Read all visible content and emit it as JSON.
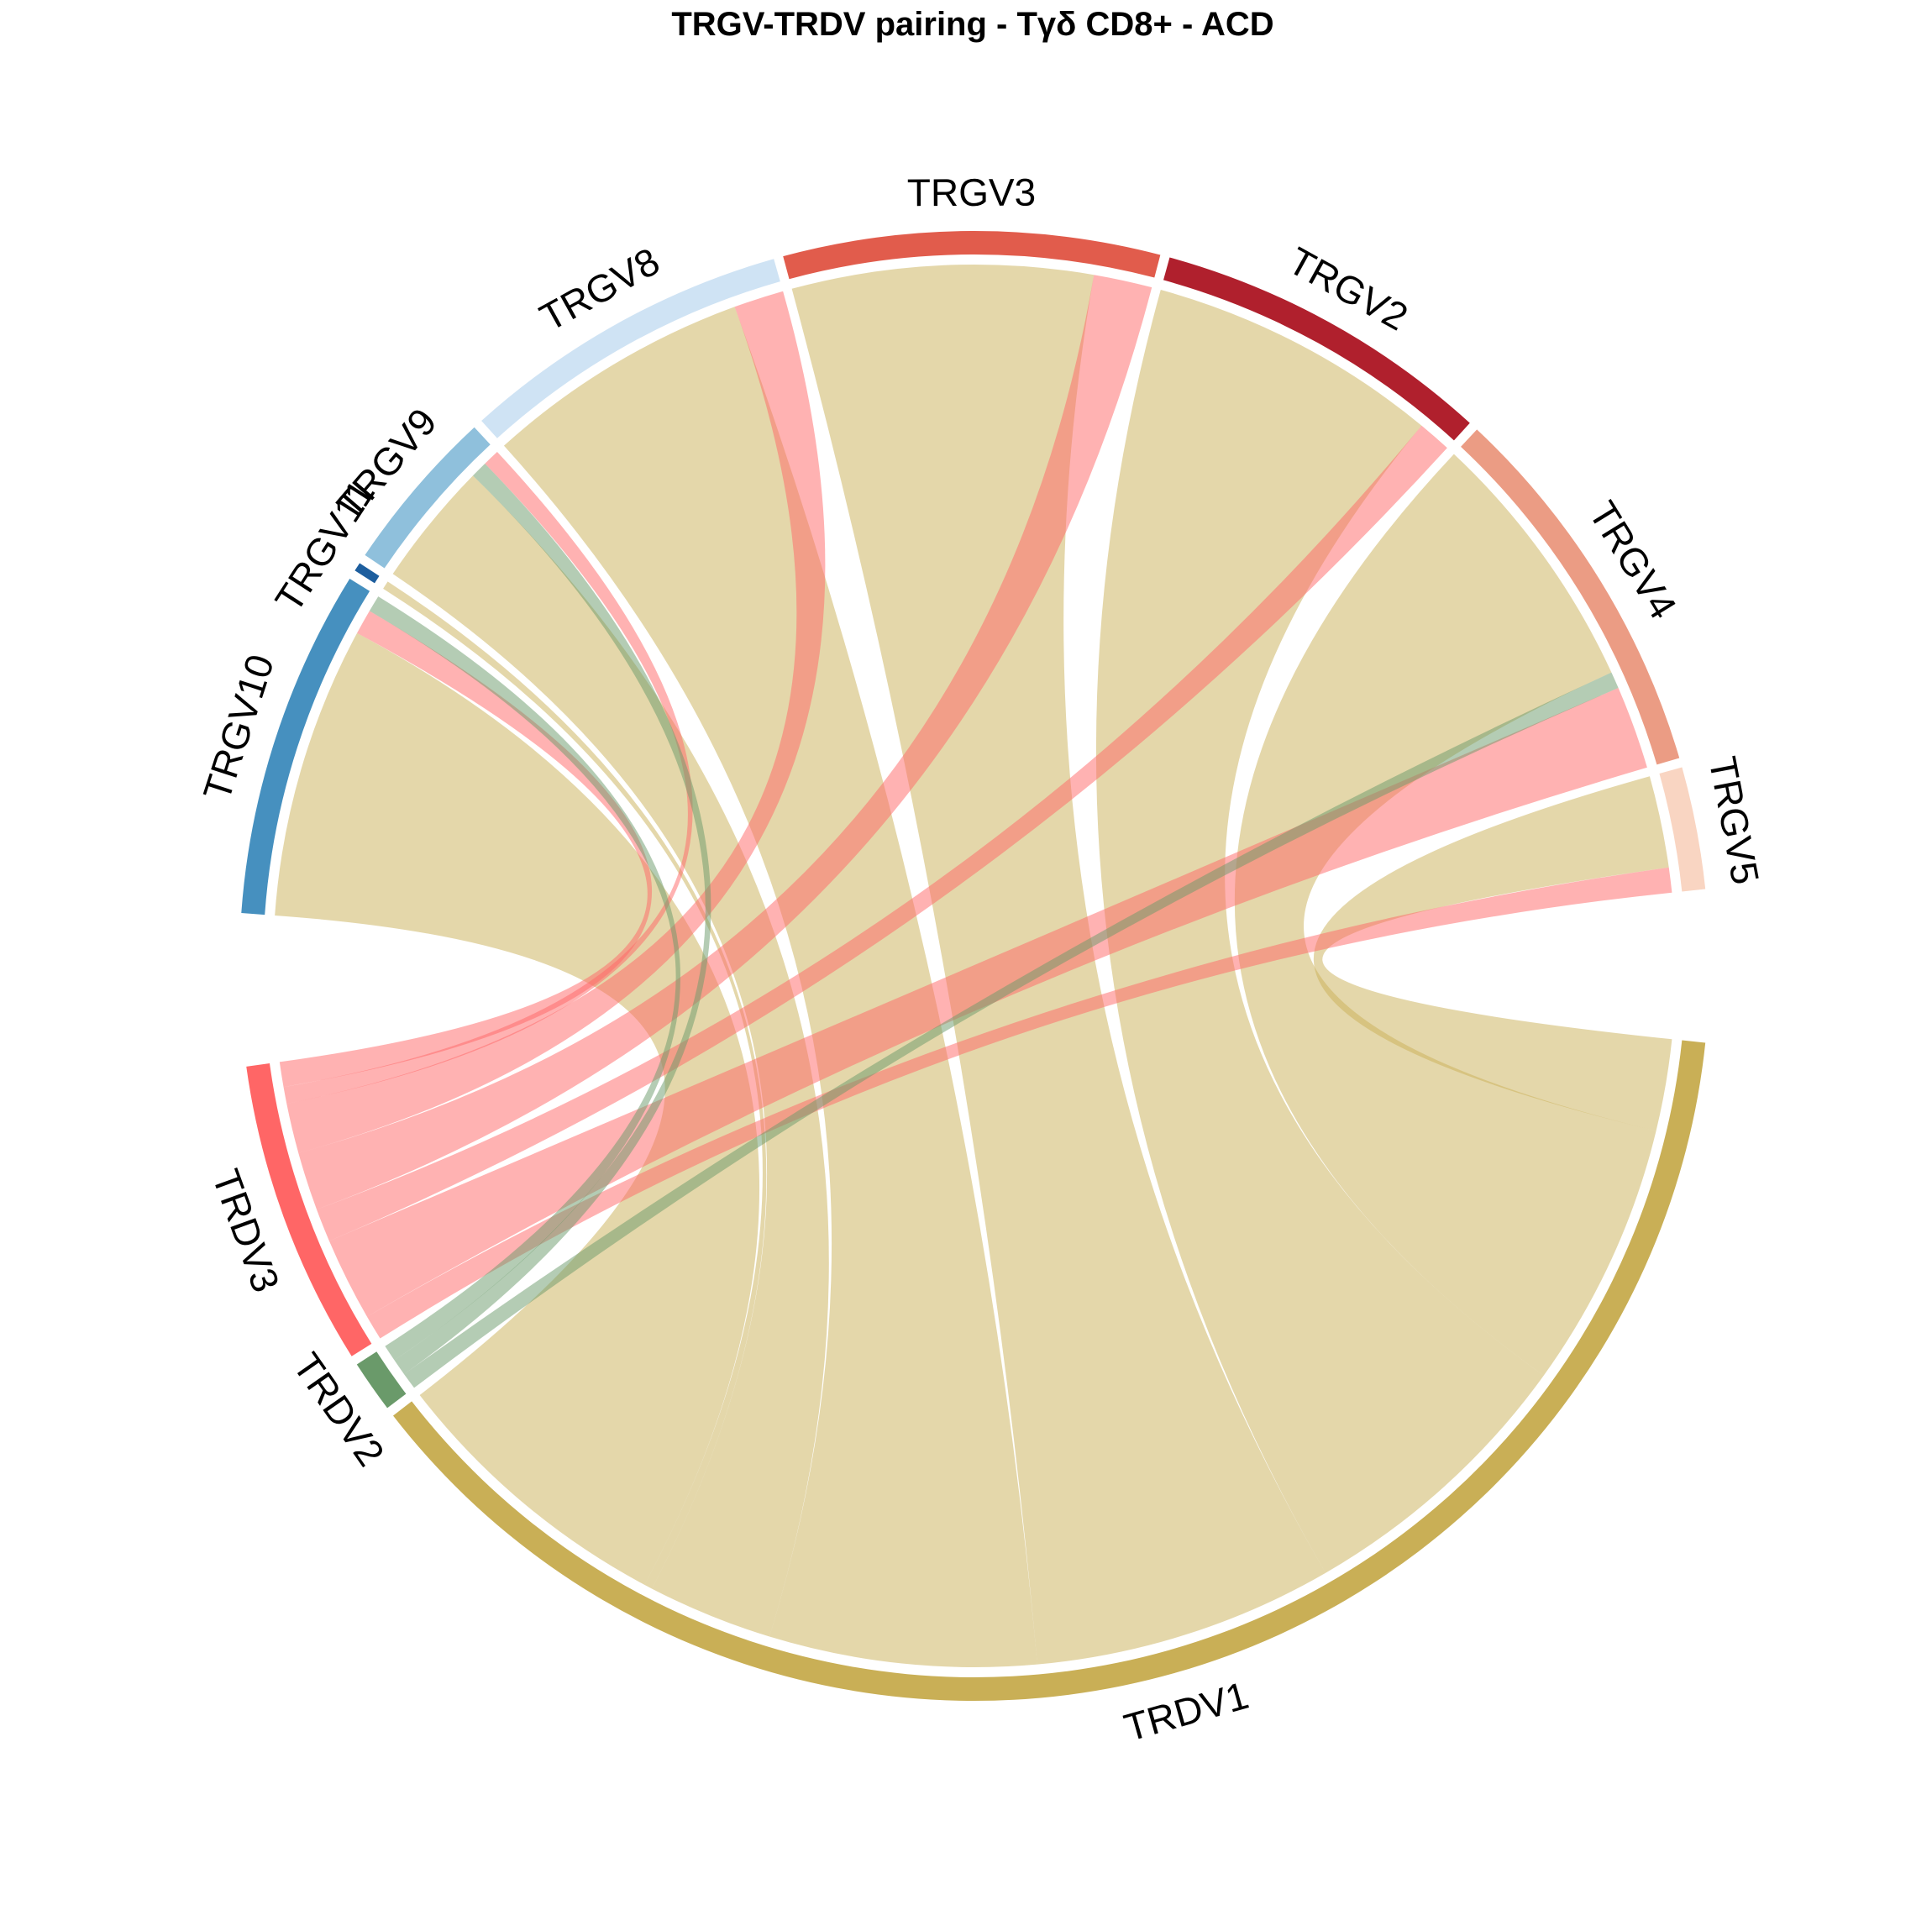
{
  "chart_data": {
    "type": "chord",
    "title": "TRGV-TRDV pairing - Tγδ CD8+ - ACD",
    "sectors": [
      {
        "name": "TRGV5",
        "color": "#F9D5C2",
        "group": "TRGV"
      },
      {
        "name": "TRGV4",
        "color": "#EB9C84",
        "group": "TRGV"
      },
      {
        "name": "TRGV2",
        "color": "#B0202D",
        "group": "TRGV"
      },
      {
        "name": "TRGV3",
        "color": "#E15C4C",
        "group": "TRGV"
      },
      {
        "name": "TRGV8",
        "color": "#CFE3F4",
        "group": "TRGV"
      },
      {
        "name": "TRGV9",
        "color": "#8FC0DC",
        "group": "TRGV"
      },
      {
        "name": "TRGV11",
        "color": "#1D5E9E",
        "group": "TRGV"
      },
      {
        "name": "TRGV10",
        "color": "#4690BF",
        "group": "TRGV"
      },
      {
        "name": "TRDV3",
        "color": "#FF6666",
        "group": "TRDV"
      },
      {
        "name": "TRDV2",
        "color": "#6A9A6A",
        "group": "TRDV"
      },
      {
        "name": "TRDV1",
        "color": "#C9AF56",
        "group": "TRDV"
      }
    ],
    "links": [
      {
        "from": "TRGV5",
        "to": "TRDV3",
        "value": 3
      },
      {
        "from": "TRGV5",
        "to": "TRDV1",
        "value": 11
      },
      {
        "from": "TRGV4",
        "to": "TRDV3",
        "value": 10
      },
      {
        "from": "TRGV4",
        "to": "TRDV2",
        "value": 2
      },
      {
        "from": "TRGV4",
        "to": "TRDV1",
        "value": 32
      },
      {
        "from": "TRGV2",
        "to": "TRDV3",
        "value": 4
      },
      {
        "from": "TRGV2",
        "to": "TRDV1",
        "value": 35
      },
      {
        "from": "TRGV3",
        "to": "TRDV3",
        "value": 7
      },
      {
        "from": "TRGV3",
        "to": "TRDV1",
        "value": 36
      },
      {
        "from": "TRGV8",
        "to": "TRDV3",
        "value": 6
      },
      {
        "from": "TRGV8",
        "to": "TRDV1",
        "value": 32
      },
      {
        "from": "TRGV9",
        "to": "TRDV3",
        "value": 2
      },
      {
        "from": "TRGV9",
        "to": "TRDV2",
        "value": 2
      },
      {
        "from": "TRGV9",
        "to": "TRDV1",
        "value": 15
      },
      {
        "from": "TRGV11",
        "to": "TRDV1",
        "value": 1
      },
      {
        "from": "TRGV10",
        "to": "TRDV2",
        "value": 2
      },
      {
        "from": "TRGV10",
        "to": "TRDV3",
        "value": 3
      },
      {
        "from": "TRGV10",
        "to": "TRDV1",
        "value": 35
      }
    ]
  }
}
